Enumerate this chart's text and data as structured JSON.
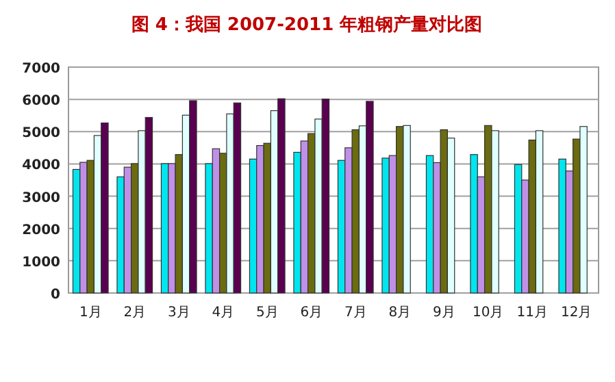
{
  "chart_data": {
    "type": "bar",
    "title": "图 4：我国 2007-2011 年粗钢产量对比图",
    "categories": [
      "1月",
      "2月",
      "3月",
      "4月",
      "5月",
      "6月",
      "7月",
      "8月",
      "9月",
      "10月",
      "11月",
      "12月"
    ],
    "series": [
      {
        "color": "#00e5ee",
        "values": [
          3830,
          3600,
          4010,
          4010,
          4150,
          4360,
          4110,
          4180,
          4260,
          4290,
          3980,
          4150
        ]
      },
      {
        "color": "#c090e8",
        "values": [
          4050,
          3900,
          4010,
          4470,
          4570,
          4710,
          4500,
          4260,
          4040,
          3600,
          3500,
          3780
        ]
      },
      {
        "color": "#6b6b10",
        "values": [
          4110,
          4010,
          4290,
          4330,
          4640,
          4940,
          5060,
          5160,
          5060,
          5190,
          4740,
          4770
        ]
      },
      {
        "color": "#e0ffff",
        "values": [
          4880,
          5030,
          5510,
          5550,
          5650,
          5390,
          5180,
          5190,
          4800,
          5030,
          5030,
          5160
        ]
      },
      {
        "color": "#5a0050",
        "values": [
          5270,
          5440,
          5960,
          5890,
          6020,
          6010,
          5940,
          null,
          null,
          null,
          null,
          null
        ]
      }
    ],
    "ylim": [
      0,
      7000
    ],
    "yticks": [
      0,
      1000,
      2000,
      3000,
      4000,
      5000,
      6000,
      7000
    ],
    "grid": "y"
  }
}
